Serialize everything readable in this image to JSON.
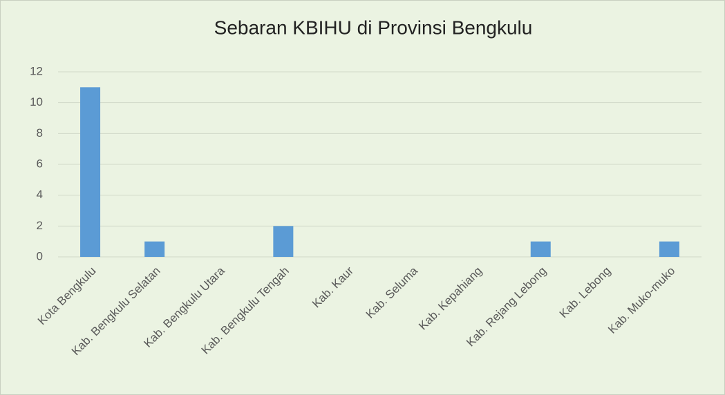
{
  "chart_data": {
    "type": "bar",
    "title": "Sebaran KBIHU di Provinsi Bengkulu",
    "categories": [
      "Kota Bengkulu",
      "Kab. Bengkulu Selatan",
      "Kab. Bengkulu Utara",
      "Kab. Bengkulu Tengah",
      "Kab. Kaur",
      "Kab. Seluma",
      "Kab. Kepahiang",
      "Kab. Rejang Lebong",
      "Kab. Lebong",
      "Kab. Muko-muko"
    ],
    "values": [
      11,
      1,
      0,
      2,
      0,
      0,
      0,
      1,
      0,
      1
    ],
    "color": "#5b9bd5",
    "ylim": [
      0,
      12
    ],
    "yticks": [
      0,
      2,
      4,
      6,
      8,
      10,
      12
    ],
    "grid": true
  }
}
